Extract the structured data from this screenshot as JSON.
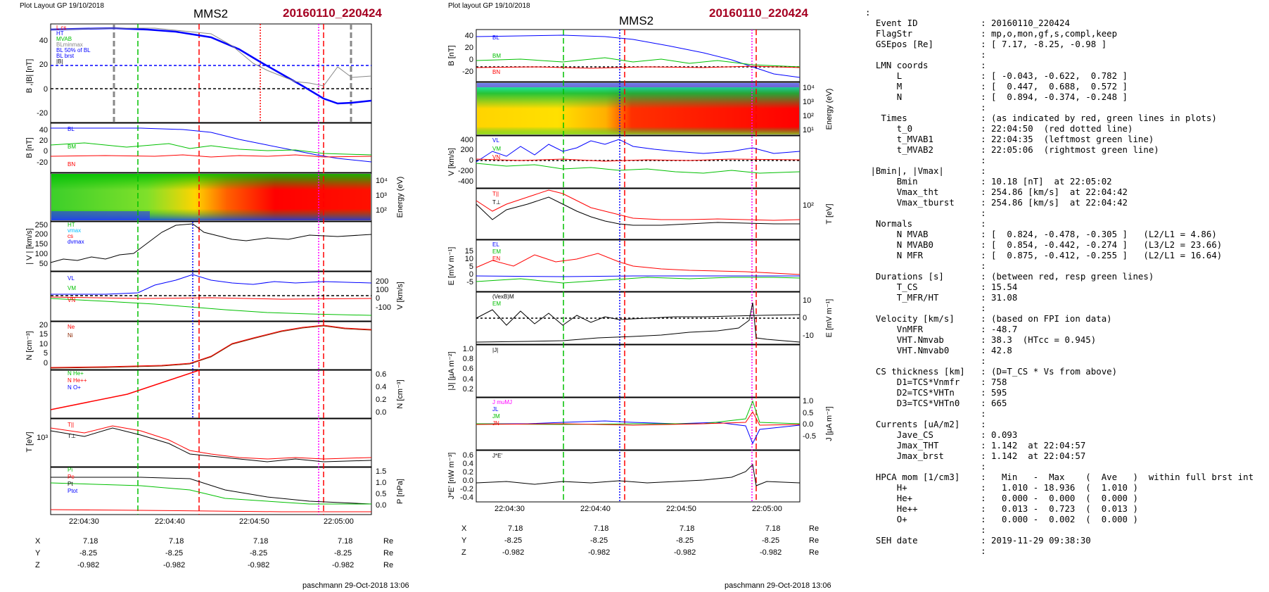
{
  "left_plot": {
    "header": "Plot Layout GP 19/10/2018",
    "spacecraft": "MMS2",
    "event": "20160110_220424",
    "footer": "paschmann 29-Oct-2018 13:06",
    "time_ticks": [
      "22:04:30",
      "22:04:40",
      "22:04:50",
      "22:05:00"
    ],
    "ephem": {
      "labels": [
        "X",
        "Y",
        "Z"
      ],
      "unit": "Re",
      "X": [
        "7.18",
        "7.18",
        "7.18",
        "7.18"
      ],
      "Y": [
        "-8.25",
        "-8.25",
        "-8.25",
        "-8.25"
      ],
      "Z": [
        "-0.982",
        "-0.982",
        "-0.982",
        "-0.982"
      ]
    }
  },
  "mid_plot": {
    "header": "Plot layout GP 19/10/2018",
    "spacecraft": "MMS2",
    "event": "20160110_220424",
    "footer": "paschmann 29-Oct-2018 13:06",
    "time_ticks": [
      "22:04:30",
      "22:04:40",
      "22:04:50",
      "22:05:00"
    ],
    "ephem": {
      "labels": [
        "X",
        "Y",
        "Z"
      ],
      "unit": "Re",
      "X": [
        "7.18",
        "7.18",
        "7.18",
        "7.18"
      ],
      "Y": [
        "-8.25",
        "-8.25",
        "-8.25",
        "-8.25"
      ],
      "Z": [
        "-0.982",
        "-0.982",
        "-0.982",
        "-0.982"
      ]
    }
  },
  "colors": {
    "event": "#a50021",
    "blue": "#0000ff",
    "red": "#ff0000",
    "green": "#00c000",
    "gray": "#888888",
    "magenta": "#ff00ff"
  },
  "summary_lines": [
    ":",
    "  Event ID            : 20160110_220424",
    "  FlagStr             : mp,o,mon,gf,s,compl,keep",
    "  GSEpos [Re]         : [ 7.17, -8.25, -0.98 ]",
    "                      :",
    "  LMN coords          :",
    "      L               : [ -0.043, -0.622,  0.782 ]",
    "      M               : [  0.447,  0.688,  0.572 ]",
    "      N               : [  0.894, -0.374, -0.248 ]",
    "                      :",
    "   Times              : (as indicated by red, green lines in plots)",
    "      t_0             : 22:04:50  (red dotted line)",
    "      t_MVAB1         : 22:04:35  (leftmost green line)",
    "      t_MVAB2         : 22:05:06  (rightmost green line)",
    "                      :",
    " |Bmin|, |Vmax|       :",
    "      Bmin            : 10.18 [nT]  at 22:05:02",
    "      Vmax_tht        : 254.86 [km/s]  at 22:04:42",
    "      Vmax_tburst     : 254.86 [km/s]  at 22:04:42",
    "                      :",
    "  Normals             :",
    "      N MVAB          : [  0.824, -0.478, -0.305 ]   (L2/L1 = 4.86)",
    "      N MVAB0         : [  0.854, -0.442, -0.274 ]   (L3/L2 = 23.66)",
    "      N MFR           : [  0.875, -0.412, -0.255 ]   (L2/L1 = 16.64)",
    "                      :",
    "  Durations [s]       : (between red, resp green lines)",
    "      T_CS            : 15.54",
    "      T_MFR/HT        : 31.08",
    "                      :",
    "  Velocity [km/s]     : (based on FPI ion data)",
    "      VnMFR           : -48.7",
    "      VHT.Nmvab       : 38.3  (HTcc = 0.945)",
    "      VHT.Nmvab0      : 42.8",
    "                      :",
    "  CS thickness [km]   : (D=T_CS * Vs from above)",
    "      D1=TCS*Vnmfr    : 758",
    "      D2=TCS*VHTn     : 595",
    "      D3=TCS*VHTn0    : 665",
    "                      :",
    "  Currents [uA/m2]    :",
    "      Jave_CS         : 0.093",
    "      Jmax_THT        : 1.142  at 22:04:57",
    "      Jmax_brst       : 1.142  at 22:04:57",
    "                      :",
    "  HPCA mom [1/cm3]    :   Min   -  Max    (  Ave   )  within full brst int",
    "      H+              :   1.010 - 18.936  (  1.010 )",
    "      He+             :   0.000 -  0.000  (  0.000 )",
    "      He++            :   0.013 -  0.723  (  0.013 )",
    "      O+              :   0.000 -  0.002  (  0.000 )",
    "                      :",
    "  SEH date            : 2019-11-29 09:38:30",
    "                      :"
  ],
  "chart_data": [
    {
      "type": "line",
      "panel": "left-1",
      "ylabel": "BL,|B| [nT]",
      "yticks": [
        "40",
        "20",
        "0",
        "-20"
      ],
      "ylim": [
        -25,
        55
      ],
      "legend": [
        "L cs",
        "HT",
        "MVAB",
        "BLminmax",
        "BL 50% of BL",
        "BL brst",
        "|B|"
      ],
      "series": [
        {
          "name": "|B|",
          "x": [
            0,
            0.08,
            0.2,
            0.3,
            0.4,
            0.5,
            0.6,
            0.7,
            0.8,
            0.88,
            0.95,
            1
          ],
          "y": [
            50,
            51,
            50,
            48,
            44,
            33,
            22,
            12,
            0,
            -10,
            -12,
            -10
          ]
        }
      ]
    },
    {
      "type": "line",
      "panel": "left-2",
      "ylabel": "BLMN [nT]",
      "yticks": [
        "40",
        "20",
        "0",
        "-20"
      ],
      "ylim": [
        -25,
        55
      ],
      "legend": [
        "BL",
        "BM",
        "BN"
      ],
      "series": [
        {
          "name": "BL",
          "x": [
            0,
            0.2,
            0.35,
            0.45,
            0.55,
            0.7,
            0.8,
            0.9,
            1
          ],
          "y": [
            48,
            48,
            47,
            44,
            35,
            20,
            10,
            2,
            -5
          ]
        },
        {
          "name": "BM",
          "x": [
            0,
            0.2,
            0.35,
            0.5,
            0.6,
            0.7,
            0.85,
            1
          ],
          "y": [
            10,
            12,
            8,
            12,
            6,
            10,
            8,
            5
          ]
        },
        {
          "name": "BN",
          "x": [
            0,
            0.3,
            0.45,
            0.6,
            0.75,
            0.9,
            1
          ],
          "y": [
            -2,
            -1,
            -3,
            1,
            -2,
            0,
            -1
          ]
        }
      ]
    },
    {
      "type": "heatmap",
      "panel": "left-3",
      "ylabel": "Energy (eV)",
      "yticks": [
        "10^4",
        "10^3",
        "10^2"
      ]
    },
    {
      "type": "line",
      "panel": "left-4",
      "ylabel": "|Vi| [km/s]",
      "yticks": [
        "250",
        "200",
        "150",
        "100",
        "50"
      ],
      "ylim": [
        30,
        260
      ],
      "legend": [
        "HT",
        "vmax",
        "cs",
        "dvmax"
      ],
      "series": [
        {
          "name": "|Vi|",
          "x": [
            0,
            0.1,
            0.2,
            0.28,
            0.35,
            0.42,
            0.47,
            0.55,
            0.65,
            0.75,
            0.85,
            1
          ],
          "y": [
            80,
            90,
            80,
            100,
            170,
            230,
            250,
            200,
            180,
            200,
            190,
            200
          ]
        }
      ]
    },
    {
      "type": "line",
      "panel": "left-5",
      "ylabel": "Vi LMN [km/s]",
      "yticks": [
        "200",
        "100",
        "0",
        "-100"
      ],
      "ylim": [
        -120,
        280
      ],
      "legend": [
        "VL",
        "VM",
        "VN"
      ],
      "series": [
        {
          "name": "VL",
          "x": [
            0,
            0.2,
            0.3,
            0.4,
            0.45,
            0.55,
            0.7,
            0.85,
            1
          ],
          "y": [
            0,
            0,
            20,
            120,
            180,
            150,
            180,
            170,
            170
          ]
        },
        {
          "name": "VM",
          "x": [
            0,
            0.3,
            0.5,
            0.7,
            0.9,
            1
          ],
          "y": [
            -20,
            -30,
            -70,
            -90,
            -100,
            -100
          ]
        },
        {
          "name": "VN",
          "x": [
            0,
            0.5,
            1
          ],
          "y": [
            -10,
            -5,
            -10
          ]
        }
      ]
    },
    {
      "type": "line",
      "panel": "left-6",
      "ylabel": "N [cm-3]",
      "yticks": [
        "20",
        "15",
        "10",
        "5",
        "0"
      ],
      "ylim": [
        0,
        22
      ],
      "legend": [
        "Ne",
        "Ni"
      ],
      "series": [
        {
          "name": "Ne",
          "x": [
            0,
            0.3,
            0.42,
            0.5,
            0.6,
            0.7,
            0.8,
            0.9,
            1
          ],
          "y": [
            1,
            1.5,
            3,
            8,
            14,
            18,
            20,
            21,
            20
          ]
        },
        {
          "name": "Ni",
          "x": [
            0,
            0.3,
            0.42,
            0.5,
            0.6,
            0.7,
            0.8,
            0.9,
            1
          ],
          "y": [
            1,
            1.5,
            3,
            8,
            14,
            18,
            20,
            21,
            20
          ]
        }
      ]
    },
    {
      "type": "line",
      "panel": "left-7",
      "ylabel": "Ni [cm-3]",
      "yticks": [
        "0.6",
        "0.4",
        "0.2",
        "0.0"
      ],
      "ylim": [
        0,
        0.65
      ],
      "legend": [
        "N He+",
        "N He++",
        "N O+"
      ],
      "series": [
        {
          "name": "N He++",
          "x": [
            0,
            0.2,
            0.4
          ],
          "y": [
            0.05,
            0.25,
            0.6
          ]
        }
      ]
    },
    {
      "type": "line",
      "panel": "left-8",
      "ylabel": "Ti [eV]",
      "yticks": [
        "10^3"
      ],
      "legend": [
        "T||",
        "T⊥"
      ],
      "series": []
    },
    {
      "type": "line",
      "panel": "left-9",
      "ylabel": "P [nPa]",
      "yticks": [
        "1.5",
        "1.0",
        "0.5",
        "0.0"
      ],
      "ylim": [
        0,
        1.6
      ],
      "legend": [
        "Pi",
        "Pe",
        "Pt",
        "Ptot"
      ],
      "series": []
    },
    {
      "type": "line",
      "panel": "mid-1",
      "ylabel": "BLMN [nT]",
      "yticks": [
        "40",
        "20",
        "0",
        "-20"
      ],
      "ylim": [
        -25,
        55
      ],
      "legend": [
        "BL",
        "BM",
        "BN"
      ],
      "series": []
    },
    {
      "type": "heatmap",
      "panel": "mid-2",
      "ylabel": "Energy (eV)",
      "yticks": [
        "10^4",
        "10^3",
        "10^2",
        "10^1"
      ]
    },
    {
      "type": "line",
      "panel": "mid-3",
      "ylabel": "Ve LMN [km/s]",
      "yticks": [
        "400",
        "200",
        "0",
        "-200",
        "-400"
      ],
      "ylim": [
        -450,
        450
      ],
      "legend": [
        "VL",
        "VM",
        "VN"
      ],
      "series": []
    },
    {
      "type": "line",
      "panel": "mid-4",
      "ylabel": "Te [eV]",
      "yticks": [
        "10^2"
      ],
      "legend": [
        "T||",
        "T⊥"
      ],
      "series": []
    },
    {
      "type": "line",
      "panel": "mid-5",
      "ylabel": "ELMN [mV m-1]",
      "yticks": [
        "15",
        "10",
        "5",
        "0",
        "-5"
      ],
      "ylim": [
        -7,
        16
      ],
      "legend": [
        "EL",
        "EM",
        "EN"
      ],
      "series": []
    },
    {
      "type": "line",
      "panel": "mid-6",
      "ylabel": "EM [mV m-1]",
      "yticks": [
        "10",
        "0",
        "-10"
      ],
      "ylim": [
        -14,
        14
      ],
      "legend": [
        "(VexB)M",
        "EM"
      ],
      "series": []
    },
    {
      "type": "line",
      "panel": "mid-7",
      "ylabel": "|J| [µA m-2]",
      "yticks": [
        "1.0",
        "0.8",
        "0.6",
        "0.4",
        "0.2"
      ],
      "ylim": [
        0,
        1.1
      ],
      "legend": [
        "|J|"
      ],
      "series": [
        {
          "name": "|J|",
          "x": [
            0,
            0.3,
            0.5,
            0.6,
            0.7,
            0.8,
            0.85,
            0.9,
            0.95,
            1
          ],
          "y": [
            0.05,
            0.08,
            0.1,
            0.15,
            0.2,
            0.3,
            0.35,
            1.05,
            0.2,
            0.1
          ]
        }
      ]
    },
    {
      "type": "line",
      "panel": "mid-8",
      "ylabel": "J [µA m-2]",
      "yticks": [
        "1.0",
        "0.5",
        "0.0",
        "-0.5"
      ],
      "ylim": [
        -0.7,
        1.1
      ],
      "legend": [
        "J muMJ",
        "JL",
        "JM",
        "JN"
      ],
      "series": []
    },
    {
      "type": "line",
      "panel": "mid-9",
      "ylabel": "J*E' [nW m-3]",
      "yticks": [
        "0.6",
        "0.4",
        "0.2",
        "0.0",
        "-0.2",
        "-0.4"
      ],
      "ylim": [
        -0.45,
        0.65
      ],
      "legend": [
        "J*E'"
      ],
      "series": []
    }
  ]
}
